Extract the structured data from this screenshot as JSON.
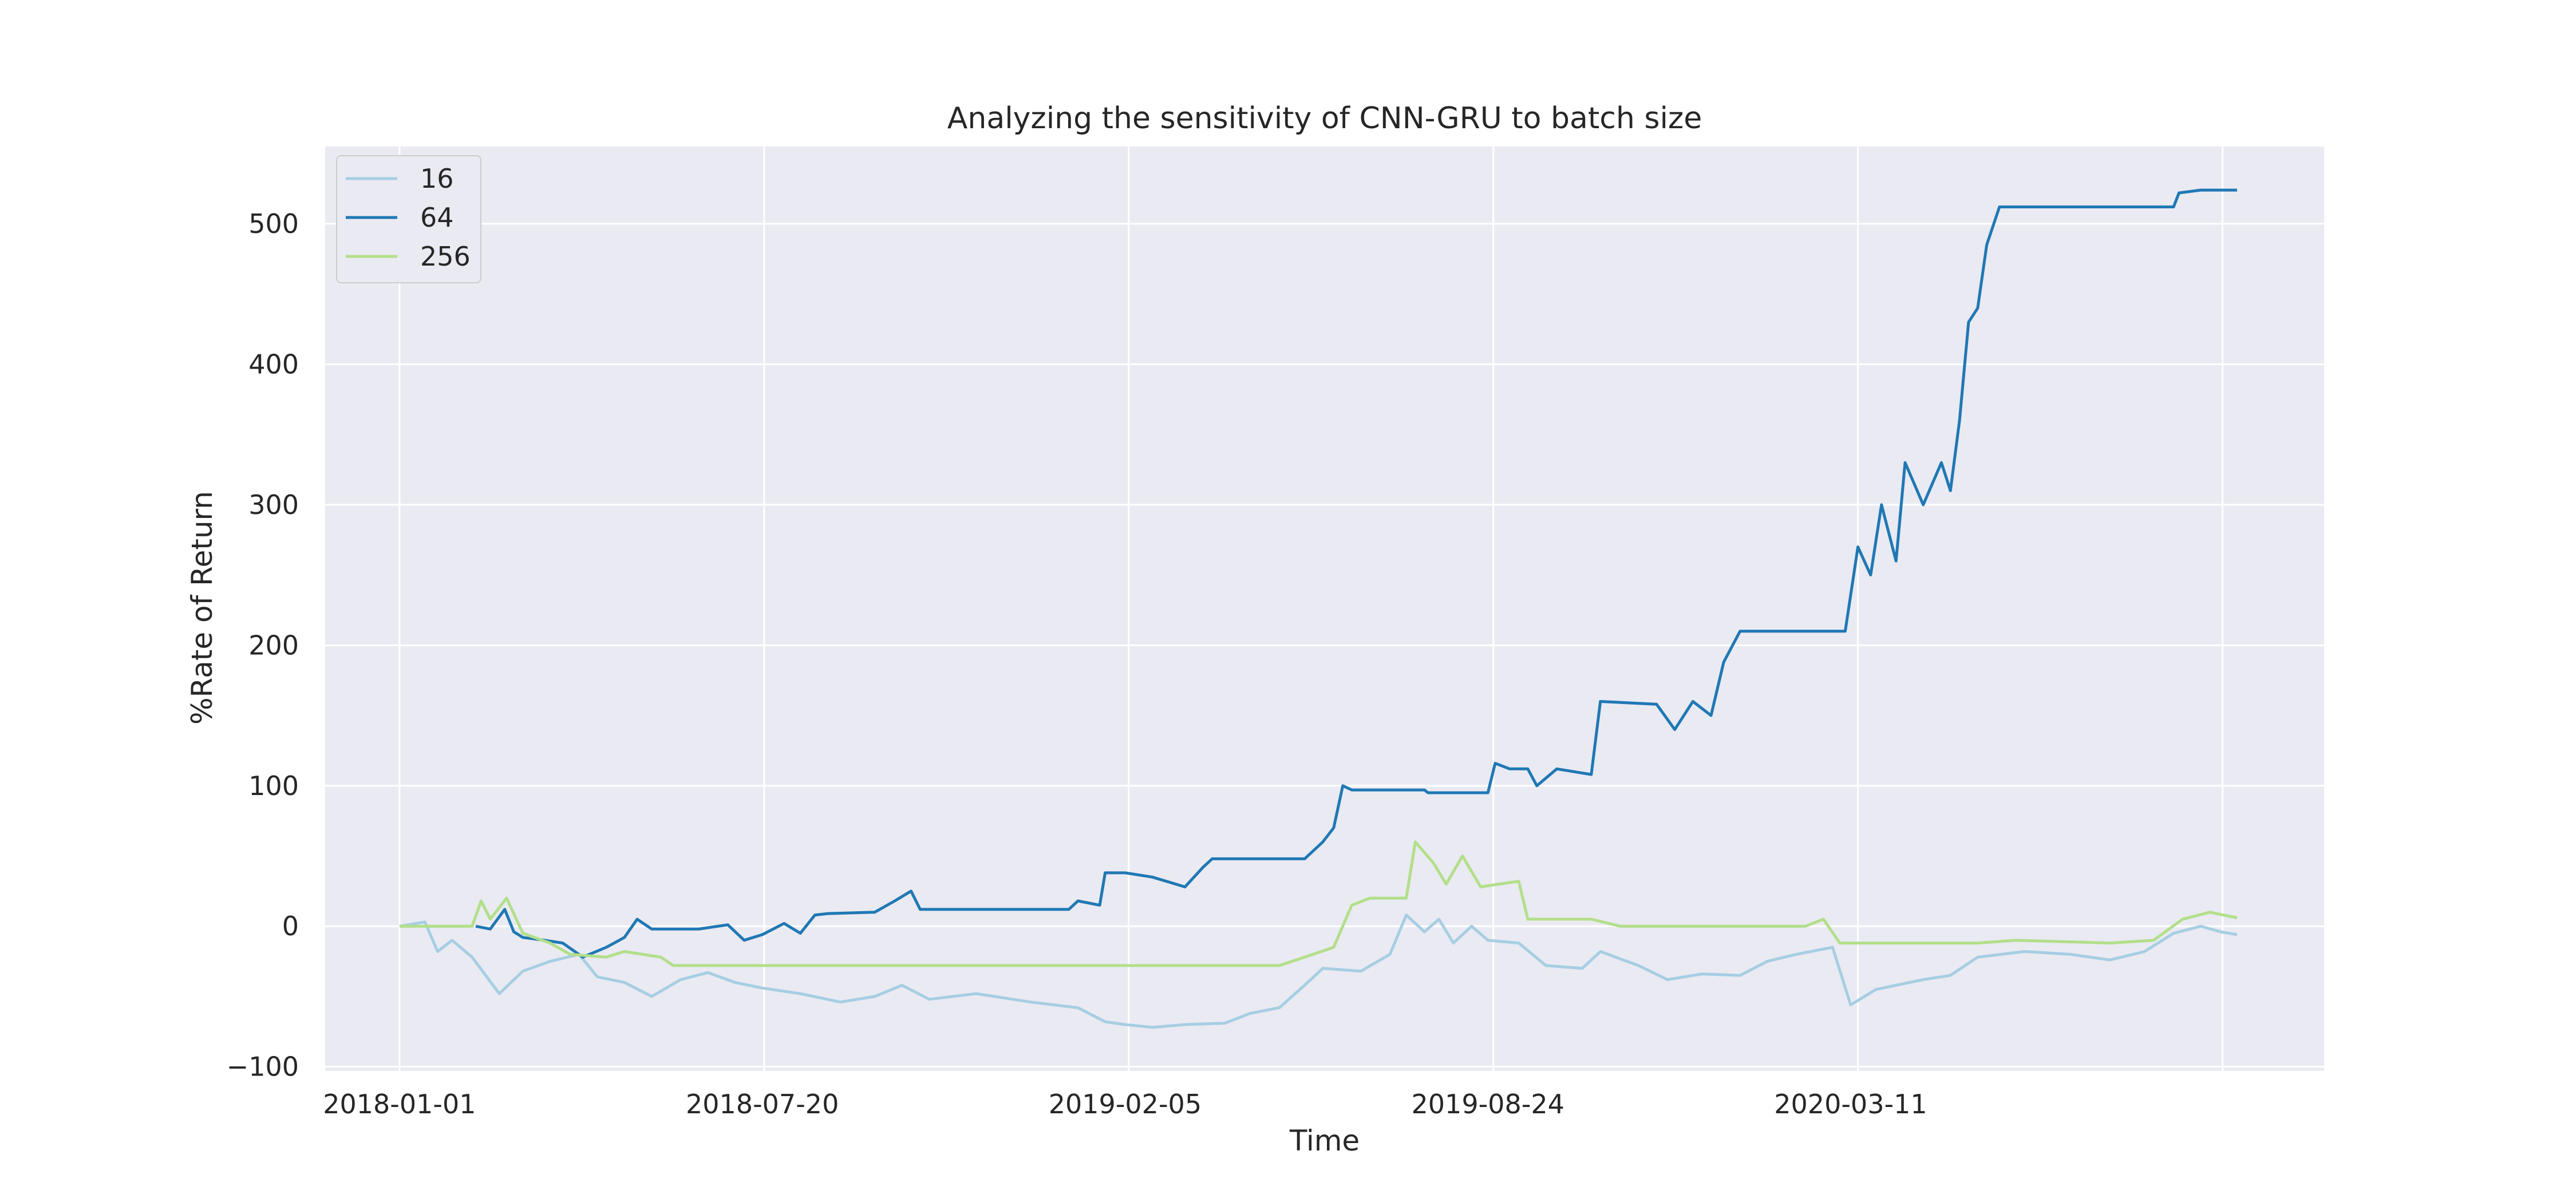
{
  "chart_data": {
    "type": "line",
    "title": "Analyzing the sensitivity of CNN-GRU to batch size",
    "xlabel": "Time",
    "ylabel": "%Rate of Return",
    "x_ticks": [
      "2018-01-01",
      "2018-07-20",
      "2019-02-05",
      "2019-08-24",
      "2020-03-11"
    ],
    "y_ticks": [
      -100,
      0,
      100,
      200,
      300,
      400,
      500
    ],
    "xlim": [
      "2017-11-21",
      "2020-11-27"
    ],
    "ylim": [
      -103,
      555
    ],
    "grid": true,
    "legend": "top-left",
    "series": [
      {
        "name": "16",
        "color": "#a6cee3",
        "points": [
          [
            "2018-01-01",
            0
          ],
          [
            "2018-01-15",
            3
          ],
          [
            "2018-01-22",
            -18
          ],
          [
            "2018-01-30",
            -10
          ],
          [
            "2018-02-10",
            -22
          ],
          [
            "2018-02-25",
            -48
          ],
          [
            "2018-03-10",
            -32
          ],
          [
            "2018-03-25",
            -25
          ],
          [
            "2018-04-10",
            -20
          ],
          [
            "2018-04-20",
            -36
          ],
          [
            "2018-05-05",
            -40
          ],
          [
            "2018-05-20",
            -50
          ],
          [
            "2018-06-05",
            -38
          ],
          [
            "2018-06-20",
            -33
          ],
          [
            "2018-07-05",
            -40
          ],
          [
            "2018-07-20",
            -44
          ],
          [
            "2018-08-10",
            -48
          ],
          [
            "2018-09-01",
            -54
          ],
          [
            "2018-09-20",
            -50
          ],
          [
            "2018-10-05",
            -42
          ],
          [
            "2018-10-20",
            -52
          ],
          [
            "2018-11-15",
            -48
          ],
          [
            "2018-12-15",
            -54
          ],
          [
            "2019-01-10",
            -58
          ],
          [
            "2019-01-25",
            -68
          ],
          [
            "2019-02-05",
            -70
          ],
          [
            "2019-02-20",
            -72
          ],
          [
            "2019-03-10",
            -70
          ],
          [
            "2019-04-01",
            -69
          ],
          [
            "2019-04-15",
            -62
          ],
          [
            "2019-05-01",
            -58
          ],
          [
            "2019-05-15",
            -42
          ],
          [
            "2019-05-25",
            -30
          ],
          [
            "2019-06-15",
            -32
          ],
          [
            "2019-07-01",
            -20
          ],
          [
            "2019-07-10",
            8
          ],
          [
            "2019-07-20",
            -4
          ],
          [
            "2019-07-28",
            5
          ],
          [
            "2019-08-05",
            -12
          ],
          [
            "2019-08-15",
            0
          ],
          [
            "2019-08-24",
            -10
          ],
          [
            "2019-09-10",
            -12
          ],
          [
            "2019-09-25",
            -28
          ],
          [
            "2019-10-15",
            -30
          ],
          [
            "2019-10-25",
            -18
          ],
          [
            "2019-11-15",
            -28
          ],
          [
            "2019-12-01",
            -38
          ],
          [
            "2019-12-20",
            -34
          ],
          [
            "2020-01-10",
            -35
          ],
          [
            "2020-01-25",
            -25
          ],
          [
            "2020-02-10",
            -20
          ],
          [
            "2020-03-01",
            -15
          ],
          [
            "2020-03-11",
            -56
          ],
          [
            "2020-03-25",
            -45
          ],
          [
            "2020-04-20",
            -38
          ],
          [
            "2020-05-05",
            -35
          ],
          [
            "2020-05-20",
            -22
          ],
          [
            "2020-06-15",
            -18
          ],
          [
            "2020-07-10",
            -20
          ],
          [
            "2020-08-01",
            -24
          ],
          [
            "2020-08-20",
            -18
          ],
          [
            "2020-09-05",
            -5
          ],
          [
            "2020-09-20",
            0
          ],
          [
            "2020-10-01",
            -4
          ],
          [
            "2020-10-10",
            -6
          ]
        ]
      },
      {
        "name": "64",
        "color": "#1f78b4",
        "points": [
          [
            "2018-02-12",
            0
          ],
          [
            "2018-02-20",
            -2
          ],
          [
            "2018-02-28",
            12
          ],
          [
            "2018-03-05",
            -4
          ],
          [
            "2018-03-10",
            -8
          ],
          [
            "2018-03-22",
            -10
          ],
          [
            "2018-04-01",
            -12
          ],
          [
            "2018-04-12",
            -22
          ],
          [
            "2018-04-25",
            -15
          ],
          [
            "2018-05-05",
            -8
          ],
          [
            "2018-05-12",
            5
          ],
          [
            "2018-05-20",
            -2
          ],
          [
            "2018-06-15",
            -2
          ],
          [
            "2018-07-01",
            1
          ],
          [
            "2018-07-10",
            -10
          ],
          [
            "2018-07-20",
            -6
          ],
          [
            "2018-08-01",
            2
          ],
          [
            "2018-08-10",
            -5
          ],
          [
            "2018-08-18",
            8
          ],
          [
            "2018-08-25",
            9
          ],
          [
            "2018-09-20",
            10
          ],
          [
            "2018-10-01",
            18
          ],
          [
            "2018-10-10",
            25
          ],
          [
            "2018-10-15",
            12
          ],
          [
            "2019-01-05",
            12
          ],
          [
            "2019-01-10",
            18
          ],
          [
            "2019-01-22",
            15
          ],
          [
            "2019-01-25",
            38
          ],
          [
            "2019-02-05",
            38
          ],
          [
            "2019-02-20",
            35
          ],
          [
            "2019-03-10",
            28
          ],
          [
            "2019-03-15",
            35
          ],
          [
            "2019-03-20",
            42
          ],
          [
            "2019-03-25",
            48
          ],
          [
            "2019-05-15",
            48
          ],
          [
            "2019-05-25",
            60
          ],
          [
            "2019-05-31",
            70
          ],
          [
            "2019-06-05",
            100
          ],
          [
            "2019-06-10",
            97
          ],
          [
            "2019-07-20",
            97
          ],
          [
            "2019-07-22",
            95
          ],
          [
            "2019-08-24",
            95
          ],
          [
            "2019-08-28",
            116
          ],
          [
            "2019-09-05",
            112
          ],
          [
            "2019-09-15",
            112
          ],
          [
            "2019-09-20",
            100
          ],
          [
            "2019-10-01",
            112
          ],
          [
            "2019-10-20",
            108
          ],
          [
            "2019-10-25",
            160
          ],
          [
            "2019-11-25",
            158
          ],
          [
            "2019-12-05",
            140
          ],
          [
            "2019-12-15",
            160
          ],
          [
            "2019-12-25",
            150
          ],
          [
            "2020-01-01",
            188
          ],
          [
            "2020-01-10",
            210
          ],
          [
            "2020-03-08",
            210
          ],
          [
            "2020-03-15",
            270
          ],
          [
            "2020-03-22",
            250
          ],
          [
            "2020-03-28",
            300
          ],
          [
            "2020-04-05",
            260
          ],
          [
            "2020-04-10",
            330
          ],
          [
            "2020-04-20",
            300
          ],
          [
            "2020-04-30",
            330
          ],
          [
            "2020-05-05",
            310
          ],
          [
            "2020-05-10",
            360
          ],
          [
            "2020-05-15",
            430
          ],
          [
            "2020-05-20",
            440
          ],
          [
            "2020-05-25",
            485
          ],
          [
            "2020-06-01",
            512
          ],
          [
            "2020-09-05",
            512
          ],
          [
            "2020-09-08",
            522
          ],
          [
            "2020-09-20",
            524
          ],
          [
            "2020-10-10",
            524
          ]
        ]
      },
      {
        "name": "256",
        "color": "#b2df8a",
        "points": [
          [
            "2018-01-01",
            0
          ],
          [
            "2018-02-10",
            0
          ],
          [
            "2018-02-15",
            18
          ],
          [
            "2018-02-20",
            5
          ],
          [
            "2018-03-01",
            20
          ],
          [
            "2018-03-10",
            -5
          ],
          [
            "2018-03-25",
            -12
          ],
          [
            "2018-04-05",
            -20
          ],
          [
            "2018-04-25",
            -22
          ],
          [
            "2018-05-05",
            -18
          ],
          [
            "2018-05-25",
            -22
          ],
          [
            "2018-06-01",
            -28
          ],
          [
            "2019-05-01",
            -28
          ],
          [
            "2019-05-15",
            -22
          ],
          [
            "2019-05-31",
            -15
          ],
          [
            "2019-06-10",
            15
          ],
          [
            "2019-06-20",
            20
          ],
          [
            "2019-07-10",
            20
          ],
          [
            "2019-07-15",
            60
          ],
          [
            "2019-07-25",
            45
          ],
          [
            "2019-08-01",
            30
          ],
          [
            "2019-08-10",
            50
          ],
          [
            "2019-08-20",
            28
          ],
          [
            "2019-08-30",
            30
          ],
          [
            "2019-09-10",
            32
          ],
          [
            "2019-09-15",
            5
          ],
          [
            "2019-10-20",
            5
          ],
          [
            "2019-11-05",
            0
          ],
          [
            "2020-02-15",
            0
          ],
          [
            "2020-02-25",
            5
          ],
          [
            "2020-03-05",
            -12
          ],
          [
            "2020-05-20",
            -12
          ],
          [
            "2020-06-10",
            -10
          ],
          [
            "2020-08-01",
            -12
          ],
          [
            "2020-08-25",
            -10
          ],
          [
            "2020-09-10",
            5
          ],
          [
            "2020-09-25",
            10
          ],
          [
            "2020-10-10",
            6
          ]
        ]
      }
    ]
  }
}
